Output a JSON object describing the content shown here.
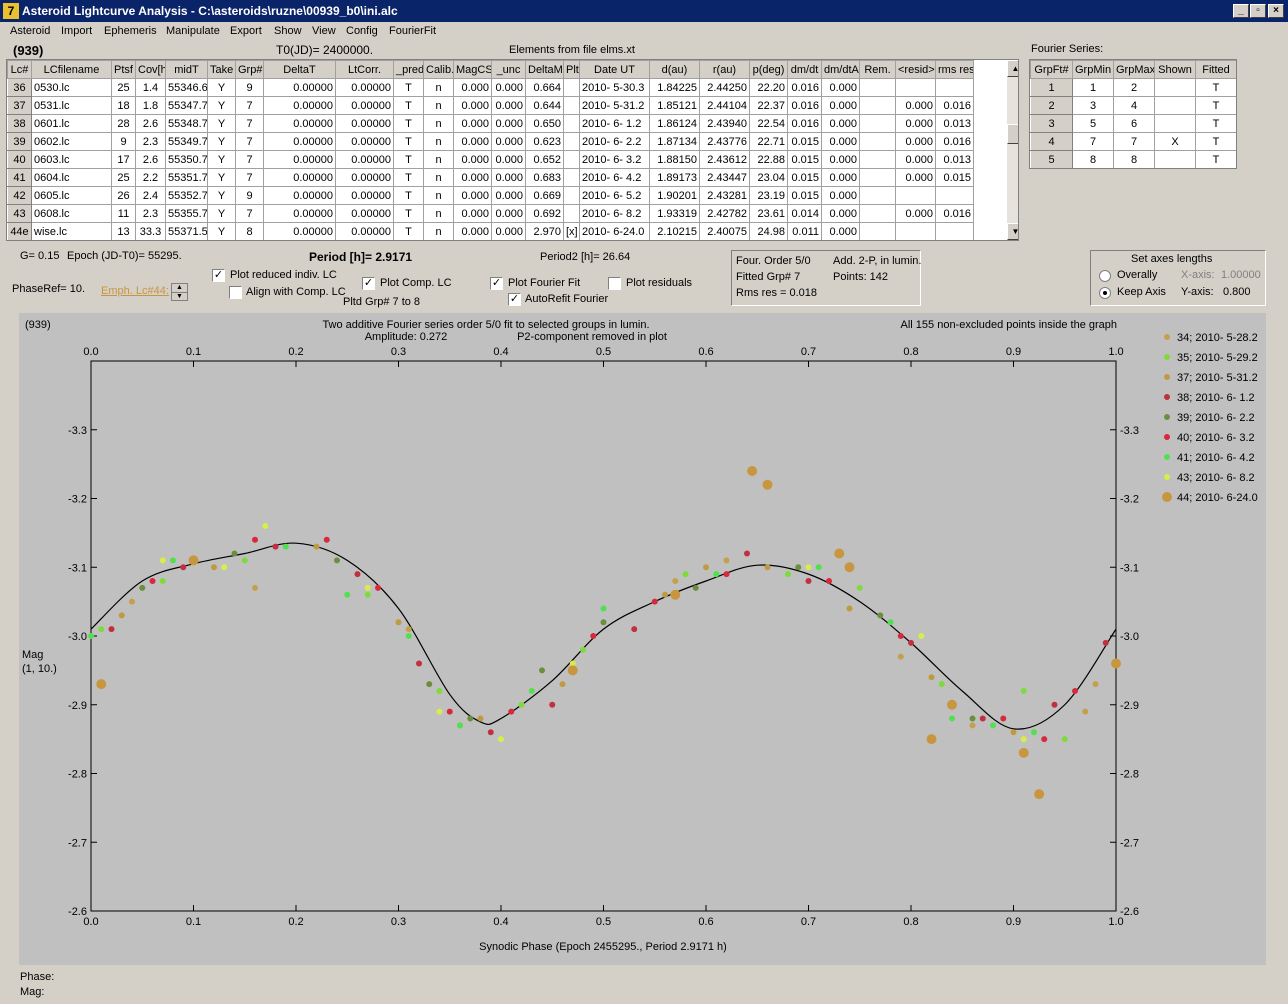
{
  "window": {
    "title": "Asteroid Lightcurve Analysis - C:\\asteroids\\ruzne\\00939_b0\\ini.alc",
    "icon_glyph": "7",
    "minimize": "_",
    "restore": "▫",
    "close": "×"
  },
  "menu": [
    "Asteroid",
    "Import",
    "Ephemeris",
    "Manipulate",
    "Export",
    "Show",
    "View",
    "Config",
    "FourierFit"
  ],
  "header": {
    "object": "(939)",
    "t0": "T0(JD)= 2400000.",
    "elements": "Elements from file elms.xt",
    "fourier_series_label": "Fourier Series:"
  },
  "lc_table": {
    "columns": [
      "Lc#",
      "LCfilename",
      "Ptsf",
      "Cov[h]",
      "midT",
      "Take",
      "Grp#",
      "DeltaT",
      "LtCorr.",
      "_pred.",
      "Calib.",
      "MagCS",
      "_unc",
      "DeltaM",
      "Plt",
      "Date UT",
      "d(au)",
      "r(au)",
      "p(deg)",
      "dm/dt",
      "dm/dtA",
      "Rem.",
      "<resid>",
      "rms res"
    ],
    "rows": [
      [
        "36",
        "0530.lc",
        "25",
        "1.4",
        "55346.6",
        "Y",
        "9",
        "0.00000",
        "0.00000",
        "T",
        "n",
        "0.000",
        "0.000",
        "0.664",
        "",
        "2010- 5-30.3",
        "1.84225",
        "2.44250",
        "22.20",
        "0.016",
        "0.000",
        "",
        "",
        ""
      ],
      [
        "37",
        "0531.lc",
        "18",
        "1.8",
        "55347.7",
        "Y",
        "7",
        "0.00000",
        "0.00000",
        "T",
        "n",
        "0.000",
        "0.000",
        "0.644",
        "",
        "2010- 5-31.2",
        "1.85121",
        "2.44104",
        "22.37",
        "0.016",
        "0.000",
        "",
        "0.000",
        "0.016"
      ],
      [
        "38",
        "0601.lc",
        "28",
        "2.6",
        "55348.7",
        "Y",
        "7",
        "0.00000",
        "0.00000",
        "T",
        "n",
        "0.000",
        "0.000",
        "0.650",
        "",
        "2010- 6- 1.2",
        "1.86124",
        "2.43940",
        "22.54",
        "0.016",
        "0.000",
        "",
        "0.000",
        "0.013"
      ],
      [
        "39",
        "0602.lc",
        "9",
        "2.3",
        "55349.7",
        "Y",
        "7",
        "0.00000",
        "0.00000",
        "T",
        "n",
        "0.000",
        "0.000",
        "0.623",
        "",
        "2010- 6- 2.2",
        "1.87134",
        "2.43776",
        "22.71",
        "0.015",
        "0.000",
        "",
        "0.000",
        "0.016"
      ],
      [
        "40",
        "0603.lc",
        "17",
        "2.6",
        "55350.7",
        "Y",
        "7",
        "0.00000",
        "0.00000",
        "T",
        "n",
        "0.000",
        "0.000",
        "0.652",
        "",
        "2010- 6- 3.2",
        "1.88150",
        "2.43612",
        "22.88",
        "0.015",
        "0.000",
        "",
        "0.000",
        "0.013"
      ],
      [
        "41",
        "0604.lc",
        "25",
        "2.2",
        "55351.7",
        "Y",
        "7",
        "0.00000",
        "0.00000",
        "T",
        "n",
        "0.000",
        "0.000",
        "0.683",
        "",
        "2010- 6- 4.2",
        "1.89173",
        "2.43447",
        "23.04",
        "0.015",
        "0.000",
        "",
        "0.000",
        "0.015"
      ],
      [
        "42",
        "0605.lc",
        "26",
        "2.4",
        "55352.7",
        "Y",
        "9",
        "0.00000",
        "0.00000",
        "T",
        "n",
        "0.000",
        "0.000",
        "0.669",
        "",
        "2010- 6- 5.2",
        "1.90201",
        "2.43281",
        "23.19",
        "0.015",
        "0.000",
        "",
        "",
        ""
      ],
      [
        "43",
        "0608.lc",
        "11",
        "2.3",
        "55355.7",
        "Y",
        "7",
        "0.00000",
        "0.00000",
        "T",
        "n",
        "0.000",
        "0.000",
        "0.692",
        "",
        "2010- 6- 8.2",
        "1.93319",
        "2.42782",
        "23.61",
        "0.014",
        "0.000",
        "",
        "0.000",
        "0.016"
      ],
      [
        "44e",
        "wise.lc",
        "13",
        "33.3",
        "55371.5",
        "Y",
        "8",
        "0.00000",
        "0.00000",
        "T",
        "n",
        "0.000",
        "0.000",
        "2.970",
        "[x]",
        "2010- 6-24.0",
        "2.10215",
        "2.40075",
        "24.98",
        "0.011",
        "0.000",
        "",
        "",
        ""
      ]
    ]
  },
  "fourier_table": {
    "columns": [
      "GrpFt#",
      "GrpMin",
      "GrpMax",
      "Shown",
      "Fitted"
    ],
    "rows": [
      [
        "1",
        "1",
        "2",
        "",
        "T"
      ],
      [
        "2",
        "3",
        "4",
        "",
        "T"
      ],
      [
        "3",
        "5",
        "6",
        "",
        "T"
      ],
      [
        "4",
        "7",
        "7",
        "X",
        "T"
      ],
      [
        "5",
        "8",
        "8",
        "",
        "T"
      ]
    ]
  },
  "controls": {
    "g": "G= 0.15",
    "epoch": "Epoch (JD-T0)= 55295.",
    "period": "Period [h]= 2.9171",
    "period2": "Period2 [h]= 26.64",
    "phaseref": "PhaseRef= 10.",
    "emph": "Emph. Lc#44:",
    "plot_reduced": "Plot reduced indiv. LC",
    "align": "Align with Comp. LC",
    "plot_comp": "Plot Comp. LC",
    "pltd_grp": "Pltd Grp#  7   to   8",
    "plot_fourier": "Plot Fourier Fit",
    "autorefit": "AutoRefit Fourier",
    "plot_residuals": "Plot residuals",
    "check": "✓",
    "four_order": "Four. Order  5/0",
    "add2p": "Add. 2-P, in lumin.",
    "fitted_grp": "Fitted Grp# 7",
    "points": "Points: 142",
    "rms": "Rms res     = 0.018",
    "axes_title": "Set axes lengths",
    "overally": "Overally",
    "keep_axis": "Keep Axis",
    "xaxis_label": "X-axis:",
    "xaxis_value": "1.00000",
    "yaxis_label": "Y-axis:",
    "yaxis_value": "0.800"
  },
  "status": {
    "phase": "Phase:",
    "mag": "Mag:"
  },
  "chart_data": {
    "type": "scatter",
    "title": "Two additive Fourier series order 5/0 fit to selected groups in lumin.",
    "amplitude": "Amplitude: 0.272",
    "p2note": "P2-component removed in plot",
    "left_label": "(939)",
    "right_label": "All 155 non-excluded points inside the graph",
    "xlabel": "Synodic Phase (Epoch 2455295., Period 2.9171 h)",
    "ylabel": "Mag",
    "ylabel2": "(1, 10.)",
    "xlim": [
      0,
      1
    ],
    "ylim": [
      -2.6,
      -3.4
    ],
    "xticks": [
      0,
      0.1,
      0.2,
      0.3,
      0.4,
      0.5,
      0.6,
      0.7,
      0.8,
      0.9,
      1
    ],
    "xtick_labels": [
      "0.0",
      "0.1",
      "0.2",
      "0.3",
      "0.4",
      "0.5",
      "0.6",
      "0.7",
      "0.8",
      "0.9",
      "1.0"
    ],
    "yticks": [
      -3.3,
      -3.2,
      -3.1,
      -3.0,
      -2.9,
      -2.8,
      -2.7,
      -2.6
    ],
    "ytick_labels": [
      "-3.3",
      "-3.2",
      "-3.1",
      "-3.0",
      "-2.9",
      "-2.8",
      "-2.7",
      "-2.6"
    ],
    "grid": false,
    "legend_position": "right",
    "fit_curve": [
      [
        0.0,
        -3.01
      ],
      [
        0.05,
        -3.08
      ],
      [
        0.1,
        -3.105
      ],
      [
        0.15,
        -3.12
      ],
      [
        0.2,
        -3.135
      ],
      [
        0.25,
        -3.11
      ],
      [
        0.3,
        -3.04
      ],
      [
        0.35,
        -2.915
      ],
      [
        0.38,
        -2.875
      ],
      [
        0.4,
        -2.88
      ],
      [
        0.45,
        -2.935
      ],
      [
        0.5,
        -3.01
      ],
      [
        0.55,
        -3.05
      ],
      [
        0.6,
        -3.08
      ],
      [
        0.65,
        -3.103
      ],
      [
        0.7,
        -3.09
      ],
      [
        0.75,
        -3.05
      ],
      [
        0.8,
        -2.99
      ],
      [
        0.85,
        -2.92
      ],
      [
        0.9,
        -2.865
      ],
      [
        0.95,
        -2.9
      ],
      [
        1.0,
        -3.01
      ]
    ],
    "series": [
      {
        "name": "34; 2010- 5-28.2",
        "color": "#c4a04e",
        "size": 3,
        "points": [
          [
            0.04,
            -3.05
          ],
          [
            0.31,
            -3.01
          ],
          [
            0.36,
            -2.87
          ],
          [
            0.57,
            -3.08
          ],
          [
            0.62,
            -3.11
          ],
          [
            0.86,
            -2.87
          ],
          [
            0.97,
            -2.89
          ],
          [
            0.98,
            -2.93
          ],
          [
            0.79,
            -2.97
          ],
          [
            0.16,
            -3.07
          ]
        ]
      },
      {
        "name": "35; 2010- 5-29.2",
        "color": "#7edb3a",
        "size": 3,
        "points": [
          [
            0.01,
            -3.01
          ],
          [
            0.07,
            -3.08
          ],
          [
            0.15,
            -3.11
          ],
          [
            0.27,
            -3.06
          ],
          [
            0.34,
            -2.92
          ],
          [
            0.42,
            -2.9
          ],
          [
            0.48,
            -2.98
          ],
          [
            0.58,
            -3.09
          ],
          [
            0.68,
            -3.09
          ],
          [
            0.75,
            -3.07
          ],
          [
            0.83,
            -2.93
          ],
          [
            0.91,
            -2.92
          ],
          [
            0.95,
            -2.85
          ]
        ]
      },
      {
        "name": "37; 2010- 5-31.2",
        "color": "#bf9a40",
        "size": 3,
        "points": [
          [
            0.03,
            -3.03
          ],
          [
            0.12,
            -3.1
          ],
          [
            0.22,
            -3.13
          ],
          [
            0.3,
            -3.02
          ],
          [
            0.38,
            -2.88
          ],
          [
            0.46,
            -2.93
          ],
          [
            0.56,
            -3.06
          ],
          [
            0.6,
            -3.1
          ],
          [
            0.66,
            -3.1
          ],
          [
            0.74,
            -3.04
          ],
          [
            0.82,
            -2.94
          ],
          [
            0.9,
            -2.86
          ]
        ]
      },
      {
        "name": "38; 2010- 6- 1.2",
        "color": "#c03040",
        "size": 3,
        "points": [
          [
            0.02,
            -3.01
          ],
          [
            0.09,
            -3.1
          ],
          [
            0.18,
            -3.13
          ],
          [
            0.26,
            -3.09
          ],
          [
            0.32,
            -2.96
          ],
          [
            0.39,
            -2.86
          ],
          [
            0.45,
            -2.9
          ],
          [
            0.53,
            -3.01
          ],
          [
            0.64,
            -3.12
          ],
          [
            0.7,
            -3.08
          ],
          [
            0.8,
            -2.99
          ],
          [
            0.87,
            -2.88
          ],
          [
            0.94,
            -2.9
          ],
          [
            0.99,
            -2.99
          ]
        ]
      },
      {
        "name": "39; 2010- 6- 2.2",
        "color": "#6a8f3e",
        "size": 3,
        "points": [
          [
            0.05,
            -3.07
          ],
          [
            0.14,
            -3.12
          ],
          [
            0.24,
            -3.11
          ],
          [
            0.33,
            -2.93
          ],
          [
            0.37,
            -2.88
          ],
          [
            0.44,
            -2.95
          ],
          [
            0.5,
            -3.02
          ],
          [
            0.59,
            -3.07
          ],
          [
            0.69,
            -3.1
          ],
          [
            0.77,
            -3.03
          ],
          [
            0.86,
            -2.88
          ]
        ]
      },
      {
        "name": "40; 2010- 6- 3.2",
        "color": "#d8283c",
        "size": 3,
        "points": [
          [
            0.06,
            -3.08
          ],
          [
            0.16,
            -3.14
          ],
          [
            0.23,
            -3.14
          ],
          [
            0.28,
            -3.07
          ],
          [
            0.35,
            -2.89
          ],
          [
            0.41,
            -2.89
          ],
          [
            0.49,
            -3.0
          ],
          [
            0.55,
            -3.05
          ],
          [
            0.62,
            -3.09
          ],
          [
            0.72,
            -3.08
          ],
          [
            0.79,
            -3.0
          ],
          [
            0.89,
            -2.88
          ],
          [
            0.93,
            -2.85
          ],
          [
            0.96,
            -2.92
          ]
        ]
      },
      {
        "name": "41; 2010- 6- 4.2",
        "color": "#50e050",
        "size": 3,
        "points": [
          [
            0.0,
            -3.0
          ],
          [
            0.08,
            -3.11
          ],
          [
            0.19,
            -3.13
          ],
          [
            0.25,
            -3.06
          ],
          [
            0.31,
            -3.0
          ],
          [
            0.36,
            -2.87
          ],
          [
            0.43,
            -2.92
          ],
          [
            0.5,
            -3.04
          ],
          [
            0.61,
            -3.09
          ],
          [
            0.71,
            -3.1
          ],
          [
            0.78,
            -3.02
          ],
          [
            0.84,
            -2.88
          ],
          [
            0.88,
            -2.87
          ],
          [
            0.92,
            -2.86
          ]
        ]
      },
      {
        "name": "43; 2010- 6- 8.2",
        "color": "#d8ec4a",
        "size": 3,
        "points": [
          [
            0.07,
            -3.11
          ],
          [
            0.13,
            -3.1
          ],
          [
            0.17,
            -3.16
          ],
          [
            0.27,
            -3.07
          ],
          [
            0.34,
            -2.89
          ],
          [
            0.4,
            -2.85
          ],
          [
            0.47,
            -2.96
          ],
          [
            0.57,
            -3.06
          ],
          [
            0.7,
            -3.1
          ],
          [
            0.81,
            -3.0
          ],
          [
            0.91,
            -2.85
          ]
        ]
      },
      {
        "name": "44; 2010- 6-24.0",
        "color": "#c8963e",
        "size": 5,
        "points": [
          [
            0.01,
            -2.93
          ],
          [
            0.1,
            -3.11
          ],
          [
            0.47,
            -2.95
          ],
          [
            0.57,
            -3.06
          ],
          [
            0.645,
            -3.24
          ],
          [
            0.66,
            -3.22
          ],
          [
            0.73,
            -3.12
          ],
          [
            0.74,
            -3.1
          ],
          [
            0.82,
            -2.85
          ],
          [
            0.84,
            -2.9
          ],
          [
            0.91,
            -2.83
          ],
          [
            0.925,
            -2.77
          ],
          [
            1.0,
            -2.96
          ]
        ]
      }
    ]
  }
}
